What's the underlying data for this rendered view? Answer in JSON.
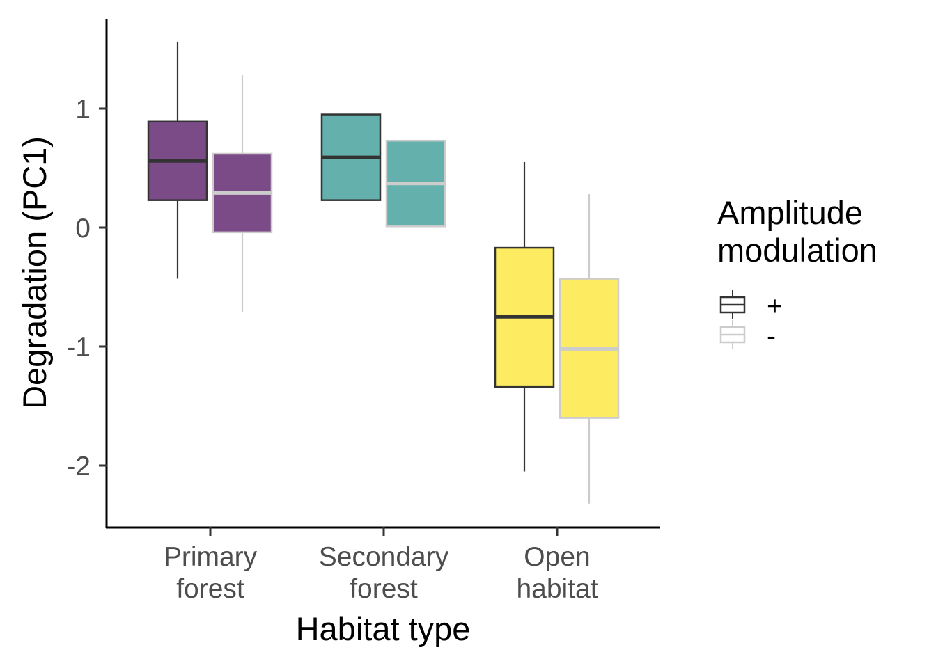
{
  "chart_data": {
    "type": "boxplot",
    "xlabel": "Habitat type",
    "ylabel": "Degradation (PC1)",
    "ylim": [
      -2.5,
      1.75
    ],
    "yticks": [
      1,
      0,
      -1,
      -2
    ],
    "ytick_labels": [
      "1",
      "0",
      "-1",
      "-2"
    ],
    "grid": false,
    "categories": [
      {
        "label_lines": [
          "Primary",
          "forest"
        ],
        "fill": "#7b4b87"
      },
      {
        "label_lines": [
          "Secondary",
          "forest"
        ],
        "fill": "#63b0ad"
      },
      {
        "label_lines": [
          "Open",
          "habitat"
        ],
        "fill": "#fdec62"
      }
    ],
    "series": [
      {
        "name": "+",
        "outline": "#333333",
        "boxes": [
          {
            "whisker_low": -0.43,
            "q1": 0.23,
            "median": 0.56,
            "q3": 0.89,
            "whisker_high": 1.56
          },
          {
            "whisker_low": 0.23,
            "q1": 0.23,
            "median": 0.59,
            "q3": 0.95,
            "whisker_high": 0.95
          },
          {
            "whisker_low": -2.05,
            "q1": -1.34,
            "median": -0.75,
            "q3": -0.17,
            "whisker_high": 0.55
          }
        ]
      },
      {
        "name": "-",
        "outline": "#cccccc",
        "boxes": [
          {
            "whisker_low": -0.71,
            "q1": -0.04,
            "median": 0.29,
            "q3": 0.62,
            "whisker_high": 1.28
          },
          {
            "whisker_low": 0.01,
            "q1": 0.01,
            "median": 0.37,
            "q3": 0.73,
            "whisker_high": 0.73
          },
          {
            "whisker_low": -2.32,
            "q1": -1.6,
            "median": -1.02,
            "q3": -0.43,
            "whisker_high": 0.28
          }
        ]
      }
    ],
    "legend": {
      "title_lines": [
        "Amplitude",
        "modulation"
      ],
      "position": "right"
    }
  }
}
